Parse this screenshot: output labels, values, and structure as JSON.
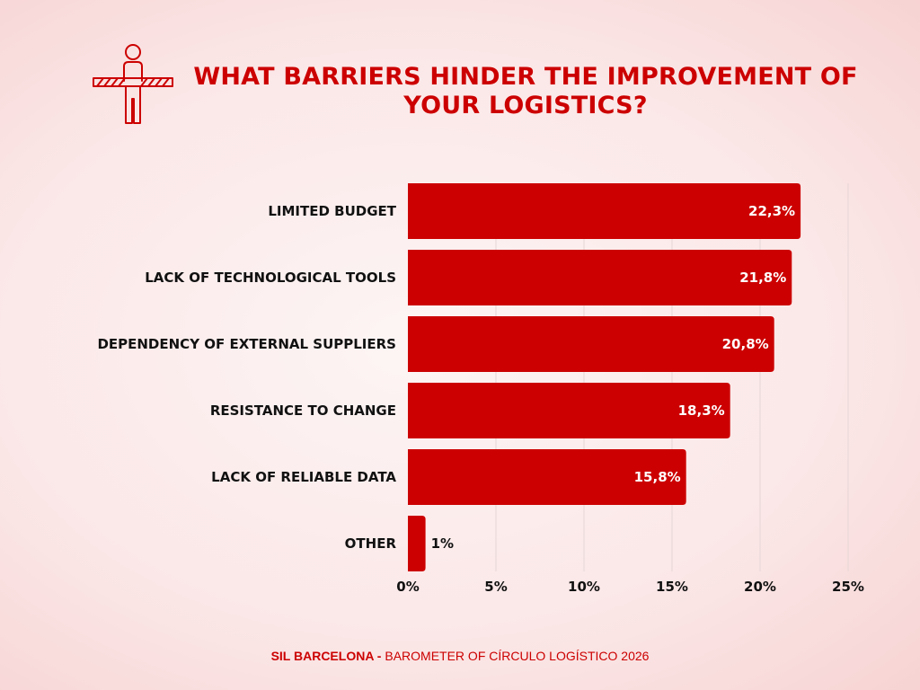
{
  "header": {
    "icon": "person-holding-barrier-icon"
  },
  "footer": {
    "brand": "SIL BARCELONA -",
    "source": "BAROMETER OF CÍRCULO  LOGÍSTICO 2026"
  },
  "colors": {
    "accent": "#cc0000",
    "bar": "#cc0000",
    "text": "#111111",
    "grid": "#e6d6d6"
  },
  "chart_data": {
    "type": "bar",
    "orientation": "horizontal",
    "title": "WHAT BARRIERS HINDER THE IMPROVEMENT OF YOUR LOGISTICS?",
    "categories": [
      "LIMITED BUDGET",
      "LACK OF TECHNOLOGICAL TOOLS",
      "DEPENDENCY OF EXTERNAL SUPPLIERS",
      "RESISTANCE TO CHANGE",
      "LACK OF RELIABLE DATA",
      "OTHER"
    ],
    "values": [
      22.3,
      21.8,
      20.8,
      18.3,
      15.8,
      1
    ],
    "value_labels": [
      "22,3%",
      "21,8%",
      "20,8%",
      "18,3%",
      "15,8%",
      "1%"
    ],
    "xlim": [
      0,
      25
    ],
    "x_ticks": [
      0,
      5,
      10,
      15,
      20,
      25
    ],
    "x_tick_labels": [
      "0%",
      "5%",
      "10%",
      "15%",
      "20%",
      "25%"
    ],
    "grid": "vertical",
    "xlabel": "",
    "ylabel": ""
  }
}
